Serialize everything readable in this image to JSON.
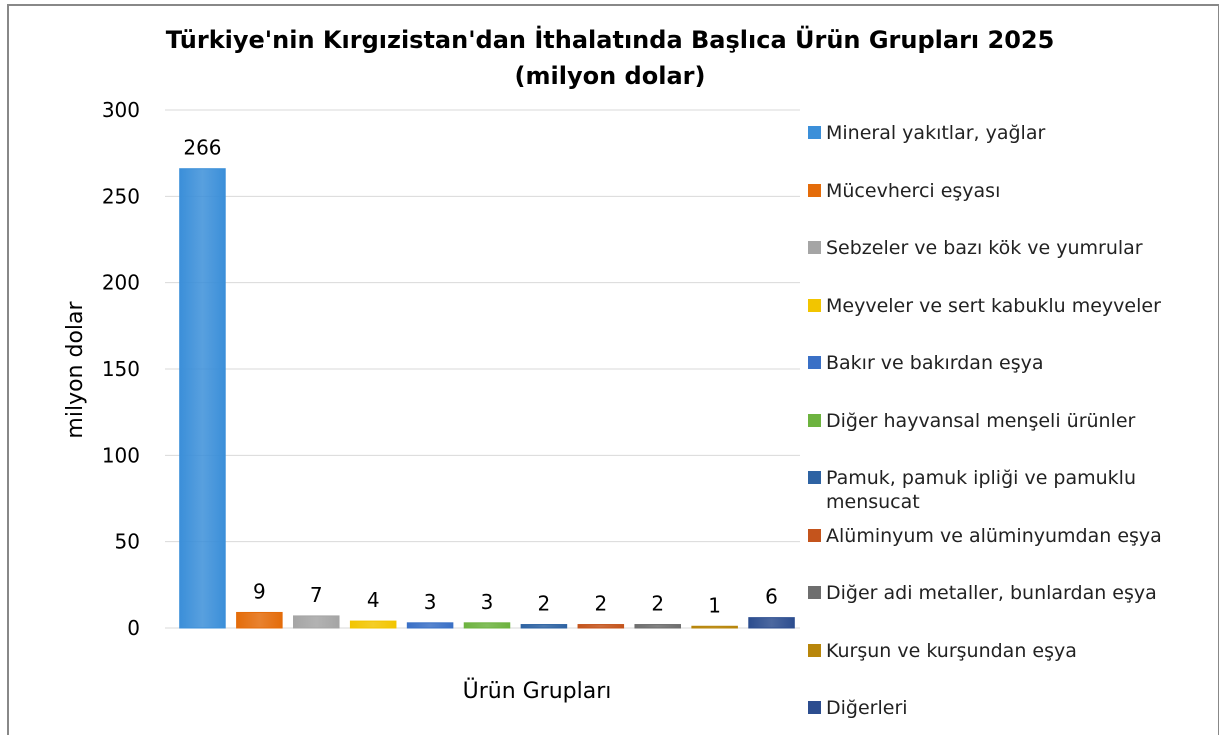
{
  "chart_data": {
    "type": "bar",
    "title": "Türkiye'nin Kırgızistan'dan İthalatında Başlıca Ürün Grupları 2025",
    "subtitle": "(milyon dolar)",
    "y_label": "milyon dolar",
    "x_label": "Ürün Grupları",
    "ylim": [
      0,
      300
    ],
    "yticks": [
      0,
      50,
      100,
      150,
      200,
      250,
      300
    ],
    "grid": true,
    "legend": "right",
    "series": [
      {
        "name": "Mineral yakıtlar, yağlar",
        "color": "#3b8fd9",
        "values": [
          266
        ]
      },
      {
        "name": "Mücevherci eşyası",
        "color": "#e46c0a",
        "values": [
          9
        ]
      },
      {
        "name": "Sebzeler ve bazı kök ve yumrular",
        "color": "#a5a5a5",
        "values": [
          7
        ]
      },
      {
        "name": "Meyveler ve sert kabuklu meyveler",
        "color": "#f2c500",
        "values": [
          4
        ]
      },
      {
        "name": "Bakır ve bakırdan eşya",
        "color": "#3a70c6",
        "values": [
          3
        ]
      },
      {
        "name": "Diğer hayvansal menşeli ürünler",
        "color": "#6db33f",
        "values": [
          3
        ]
      },
      {
        "name": "Pamuk, pamuk ipliği ve pamuklu mensucat",
        "color": "#2e63a3",
        "values": [
          2
        ]
      },
      {
        "name": "Alüminyum ve alüminyumdan eşya",
        "color": "#c4541c",
        "values": [
          2
        ]
      },
      {
        "name": "Diğer adi metaller, bunlardan eşya",
        "color": "#6e6e6e",
        "values": [
          2
        ]
      },
      {
        "name": "Kurşun ve kurşundan eşya",
        "color": "#b8860b",
        "values": [
          1
        ]
      },
      {
        "name": "Diğerleri",
        "color": "#2c4d8f",
        "values": [
          6
        ]
      }
    ]
  }
}
